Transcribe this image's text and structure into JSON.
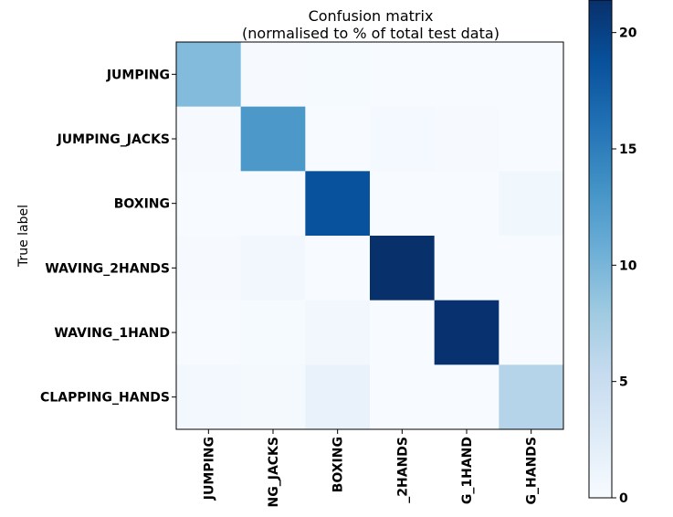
{
  "chart_data": {
    "type": "heatmap",
    "title_line1": "Confusion matrix",
    "title_line2": "(normalised to % of total test data)",
    "ylabel": "True label",
    "row_labels": [
      "JUMPING",
      "JUMPING_JACKS",
      "BOXING",
      "WAVING_2HANDS",
      "WAVING_1HAND",
      "CLAPPING_HANDS"
    ],
    "col_labels": [
      "JUMPING",
      "NG_JACKS",
      "BOXING",
      "_2HANDS",
      "G_1HAND",
      "G_HANDS"
    ],
    "values": [
      [
        9.5,
        0.1,
        0.2,
        0.0,
        0.0,
        0.0
      ],
      [
        0.1,
        12.8,
        0.0,
        0.4,
        0.1,
        0.0
      ],
      [
        0.0,
        0.0,
        18.7,
        0.0,
        0.0,
        0.7
      ],
      [
        0.1,
        0.6,
        0.0,
        21.4,
        0.0,
        0.0
      ],
      [
        0.0,
        0.2,
        0.6,
        0.0,
        21.2,
        0.0
      ],
      [
        0.5,
        0.3,
        1.5,
        0.0,
        0.0,
        6.5
      ]
    ],
    "vmin": 0,
    "vmax": 21.4,
    "colorbar_ticks": [
      0,
      5,
      10,
      15,
      20
    ],
    "colormap": "Blues",
    "grid": false
  }
}
